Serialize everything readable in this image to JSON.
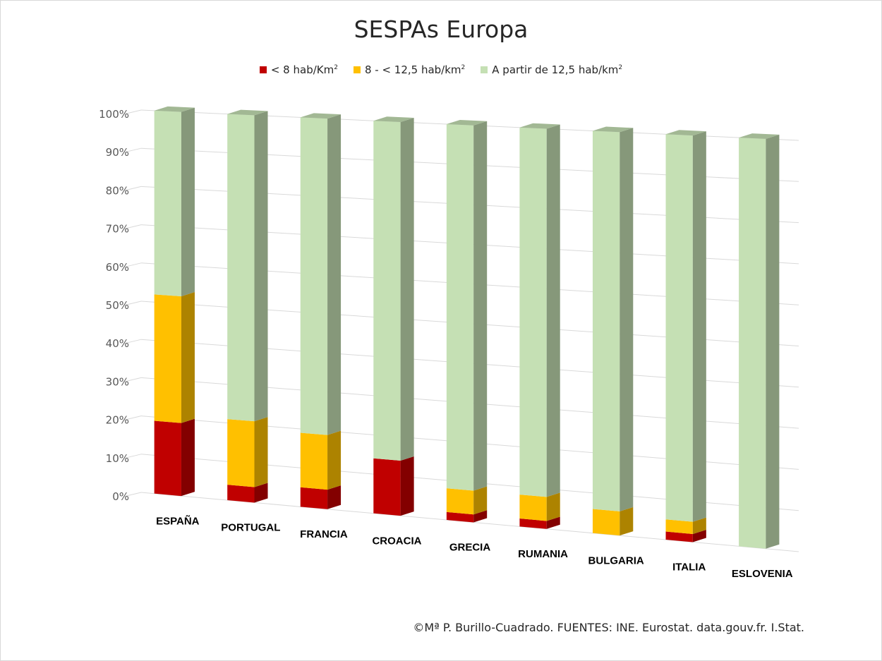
{
  "chart_data": {
    "type": "bar",
    "stacked": "percent",
    "title": "SESPAs Europa",
    "categories": [
      "ESPAÑA",
      "PORTUGAL",
      "FRANCIA",
      "CROACIA",
      "GRECIA",
      "RUMANIA",
      "BULGARIA",
      "ITALIA",
      "ESLOVENIA"
    ],
    "series": [
      {
        "name": "< 8 hab/Km",
        "sup": "2",
        "color": "#c00000",
        "values": [
          19,
          4,
          5,
          14,
          2,
          2,
          0,
          2,
          0
        ]
      },
      {
        "name": "8 - < 12,5 hab/km",
        "sup": "2",
        "color": "#ffc000",
        "values": [
          33,
          17,
          14,
          0,
          6,
          6,
          6,
          3,
          0
        ]
      },
      {
        "name": "A partir de 12,5 hab/km",
        "sup": "2",
        "color": "#c5e0b4",
        "values": [
          48,
          79,
          81,
          86,
          92,
          92,
          94,
          95,
          100
        ]
      }
    ],
    "y_ticks": [
      "0%",
      "10%",
      "20%",
      "30%",
      "40%",
      "50%",
      "60%",
      "70%",
      "80%",
      "90%",
      "100%"
    ],
    "ylim": [
      0,
      100
    ],
    "xlabel": "",
    "ylabel": "",
    "grid": true,
    "legend_position": "top"
  },
  "footer": "©Mª P. Burillo-Cuadrado. FUENTES: INE. Eurostat. data.gouv.fr. I.Stat."
}
